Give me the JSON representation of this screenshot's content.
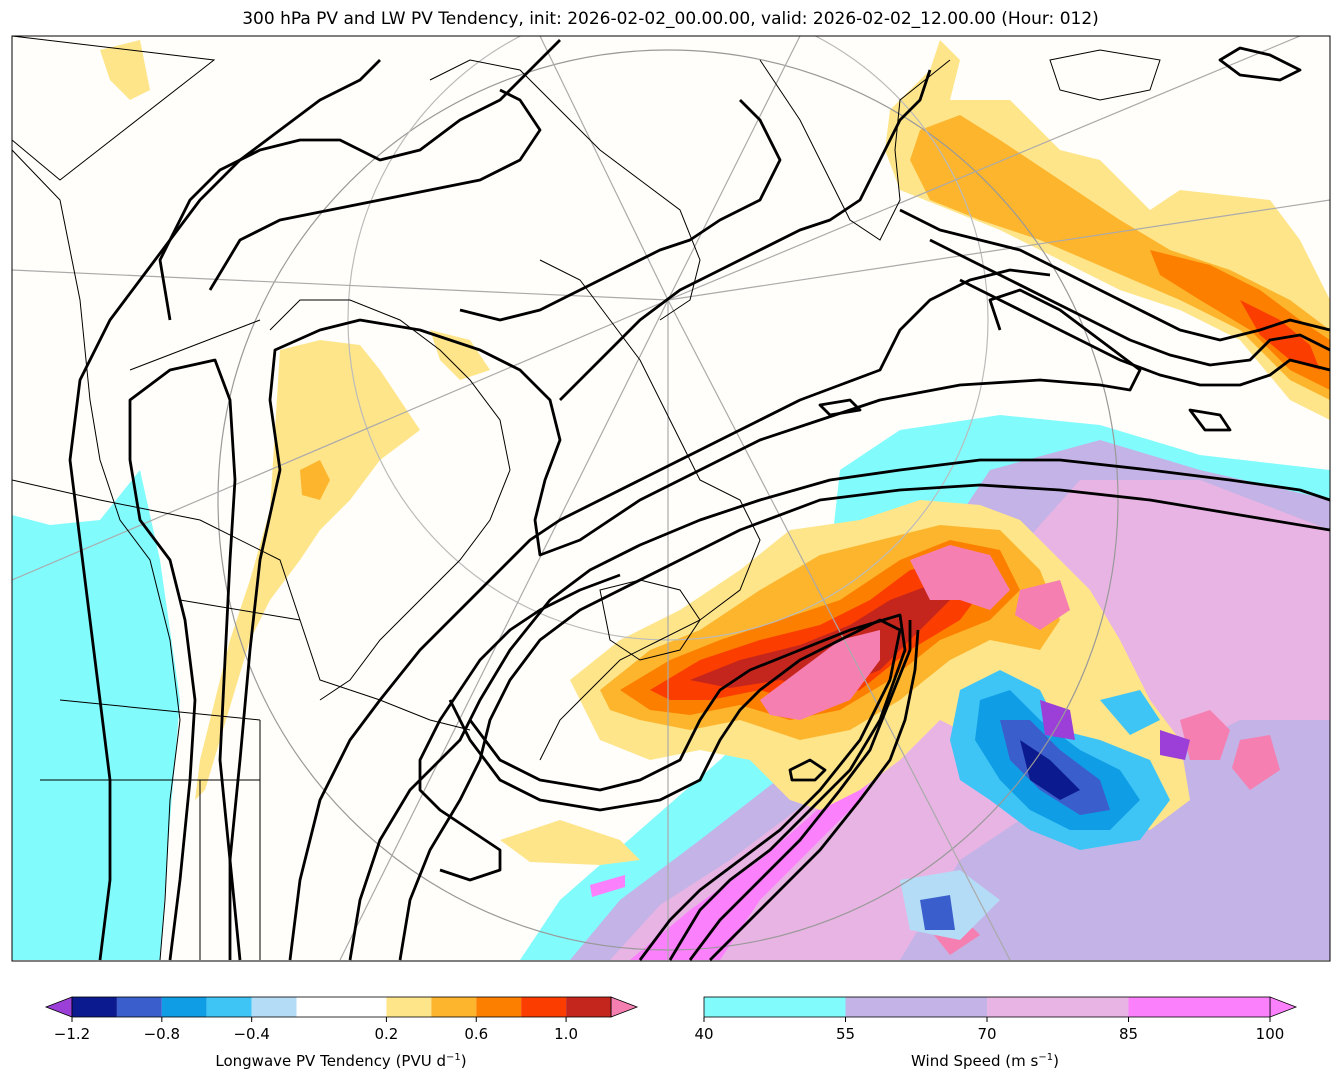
{
  "chart_data": {
    "type": "contour-map",
    "title": "300 hPa PV and LW PV Tendency, init: 2026-02-02_00.00.00, valid: 2026-02-02_12.00.00 (Hour: 012)",
    "fields": {
      "filled_shading": "Longwave PV Tendency",
      "filled_background": "Wind Speed",
      "line_contours": "300 hPa PV"
    },
    "colorbars": [
      {
        "id": "pv-tendency",
        "label_main": "Longwave PV Tendency (PVU d",
        "label_exp": "−1",
        "label_end": ")",
        "levels": [
          -1.2,
          -1.0,
          -0.8,
          -0.6,
          -0.4,
          -0.2,
          0.2,
          0.4,
          0.6,
          0.8,
          1.0,
          1.2
        ],
        "tick_values": [
          -1.2,
          -0.8,
          -0.4,
          0.2,
          0.6,
          1.0
        ],
        "tick_labels": [
          "−1.2",
          "−0.8",
          "−0.4",
          "0.2",
          "0.6",
          "1.0"
        ],
        "colors": [
          "#0b1a8f",
          "#3a5fcd",
          "#0f9ee6",
          "#3ec5f5",
          "#b5dcf6",
          "#ffffff",
          "#ffe58a",
          "#fdb52d",
          "#fd7f00",
          "#fb3d00",
          "#c4261d"
        ],
        "extend_min_color": "#9b3fd8",
        "extend_max_color": "#f67fb1"
      },
      {
        "id": "wind-speed",
        "label_main": "Wind Speed (m s",
        "label_exp": "−1",
        "label_end": ")",
        "levels": [
          40,
          55,
          70,
          85,
          100
        ],
        "tick_values": [
          40,
          55,
          70,
          85,
          100
        ],
        "tick_labels": [
          "40",
          "55",
          "70",
          "85",
          "100"
        ],
        "colors": [
          "#82fbfd",
          "#c3b3e6",
          "#e8b4e4",
          "#fb80fb"
        ],
        "extend_max_color": "#fb80fb"
      }
    ]
  },
  "colors": {
    "land": "#fffefa",
    "wind_40": "#82fbfd",
    "wind_55": "#c3b3e6",
    "wind_70": "#e8b4e4",
    "wind_85": "#fb80fb",
    "pos_02": "#ffe58a",
    "pos_04": "#fdb52d",
    "pos_06": "#fd7f00",
    "pos_08": "#fb3d00",
    "pos_10": "#c4261d",
    "pos_12": "#f67fb1",
    "neg_02": "#b5dcf6",
    "neg_04": "#3ec5f5",
    "neg_06": "#0f9ee6",
    "neg_08": "#3a5fcd",
    "neg_10": "#0b1a8f",
    "neg_12": "#9b3fd8"
  }
}
